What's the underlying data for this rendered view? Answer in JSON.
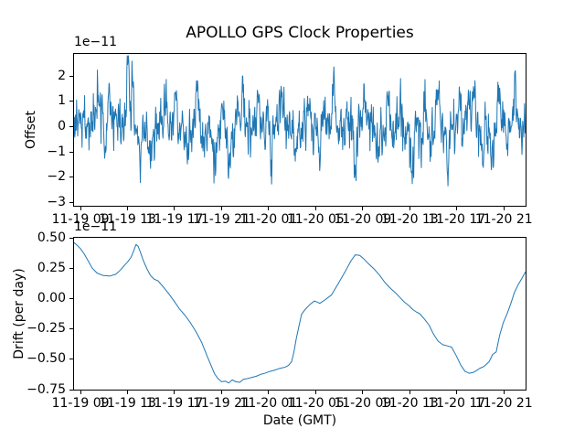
{
  "title": "APOLLO GPS Clock Properties",
  "colors": {
    "line": "#1f77b4",
    "background": "#ffffff",
    "text": "#000000"
  },
  "chart_data": [
    {
      "type": "line",
      "name": "offset-vs-time",
      "title": "APOLLO GPS Clock Properties",
      "ylabel": "Offset",
      "offset_text": "1e−11",
      "scale_factor": "1e-11",
      "ylim": [
        -3.13,
        2.87
      ],
      "yticks": [
        2,
        1,
        0,
        -1,
        -2,
        -3
      ],
      "ytick_labels": [
        "2",
        "1",
        "0",
        "−1",
        "−2",
        "−3"
      ],
      "x_domain_hours": [
        -0.55,
        37.85
      ],
      "xtick_hours": [
        0,
        4,
        8,
        12,
        16,
        20,
        24,
        28,
        32,
        36
      ],
      "xtick_labels": [
        "11-19 09",
        "11-19 13",
        "11-19 17",
        "11-19 21",
        "11-20 01",
        "11-20 05",
        "11-20 09",
        "11-20 13",
        "11-20 17",
        "11-20 21"
      ],
      "grid": false,
      "legend": false,
      "series": {
        "kind": "generated-noise",
        "description": "dense white-noise clock offset around 0 (units 1e-11 s)",
        "seed": 1119,
        "n": 1240,
        "noise_std": 0.55,
        "smooth": [
          0.8,
          0.45
        ],
        "wander": [
          [
            0.15,
            19.0,
            1.2
          ],
          [
            0.12,
            7.3,
            0.5
          ]
        ],
        "clip": [
          -3.05,
          2.8
        ],
        "spike_halfwidth_hours": 0.25,
        "spikes": [
          [
            1.55,
            1.1
          ],
          [
            2.1,
            -1.2
          ],
          [
            2.5,
            1.3
          ],
          [
            4.05,
            2.45
          ],
          [
            4.4,
            1.5
          ],
          [
            5.1,
            -1.5
          ],
          [
            5.9,
            -1.3
          ],
          [
            7.3,
            1.4
          ],
          [
            8.1,
            1.6
          ],
          [
            9.1,
            -1.5
          ],
          [
            9.9,
            1.5
          ],
          [
            11.35,
            -1.9
          ],
          [
            12.05,
            1.3
          ],
          [
            12.65,
            -1.6
          ],
          [
            13.35,
            1.2
          ],
          [
            13.8,
            1.75
          ],
          [
            15.1,
            1.4
          ],
          [
            16.2,
            -1.3
          ],
          [
            17.05,
            1.5
          ],
          [
            18.3,
            -1.2
          ],
          [
            19.4,
            1.2
          ],
          [
            20.3,
            -1.3
          ],
          [
            21.55,
            1.6
          ],
          [
            22.3,
            -1.1
          ],
          [
            23.38,
            -2.75
          ],
          [
            24.2,
            1.4
          ],
          [
            25.3,
            -1.2
          ],
          [
            26.2,
            1.4
          ],
          [
            27.2,
            1.2
          ],
          [
            28.2,
            -2.25
          ],
          [
            29.3,
            1.3
          ],
          [
            30.4,
            1.5
          ],
          [
            31.3,
            -1.4
          ],
          [
            32.2,
            1.3
          ],
          [
            33.0,
            1.85
          ],
          [
            33.45,
            1.6
          ],
          [
            34.2,
            -1.35
          ],
          [
            34.95,
            -1.45
          ],
          [
            35.6,
            1.5
          ],
          [
            36.3,
            -1.2
          ],
          [
            37.0,
            1.2
          ],
          [
            37.5,
            -0.9
          ]
        ]
      }
    },
    {
      "type": "line",
      "name": "drift-vs-time",
      "ylabel": "Drift (per day)",
      "xlabel": "Date (GMT)",
      "offset_text": "1e−11",
      "scale_factor": "1e-11",
      "ylim": [
        -0.75,
        0.5
      ],
      "yticks": [
        0.5,
        0.25,
        0,
        -0.25,
        -0.5,
        -0.75
      ],
      "ytick_labels": [
        "0.50",
        "0.25",
        "0.00",
        "−0.25",
        "−0.50",
        "−0.75"
      ],
      "x_domain_hours": [
        -0.55,
        37.85
      ],
      "xtick_hours": [
        0,
        4,
        8,
        12,
        16,
        20,
        24,
        28,
        32,
        36
      ],
      "xtick_labels": [
        "11-19 09",
        "11-19 13",
        "11-19 17",
        "11-19 21",
        "11-20 01",
        "11-20 05",
        "11-20 09",
        "11-20 13",
        "11-20 17",
        "11-20 21"
      ],
      "grid": false,
      "legend": false,
      "series": {
        "kind": "points",
        "description": "smooth clock drift curve (units 1e-11 per day); hours measured from 11-19 09:00 GMT",
        "x_hours": [
          -0.55,
          -0.3,
          0,
          0.3,
          0.65,
          1.0,
          1.4,
          1.9,
          2.5,
          3.0,
          3.4,
          3.7,
          4.0,
          4.3,
          4.55,
          4.72,
          4.9,
          5.1,
          5.35,
          5.65,
          5.95,
          6.25,
          6.6,
          7.0,
          7.5,
          7.95,
          8.45,
          8.9,
          9.35,
          9.8,
          10.3,
          10.75,
          11.1,
          11.4,
          11.7,
          12.0,
          12.3,
          12.6,
          12.9,
          13.2,
          13.55,
          13.85,
          14.15,
          14.55,
          14.95,
          15.3,
          15.7,
          16.1,
          16.5,
          16.85,
          17.1,
          17.4,
          17.7,
          17.95,
          18.15,
          18.35,
          18.55,
          18.8,
          19.1,
          19.5,
          19.9,
          20.35,
          20.8,
          21.35,
          21.9,
          22.5,
          23.0,
          23.37,
          23.75,
          24.05,
          24.5,
          25.0,
          25.45,
          25.9,
          26.4,
          26.8,
          27.15,
          27.55,
          27.95,
          28.25,
          28.55,
          28.85,
          29.25,
          29.65,
          30.0,
          30.4,
          30.8,
          31.2,
          31.55,
          31.95,
          32.35,
          32.7,
          33.05,
          33.35,
          33.65,
          33.95,
          34.3,
          34.75,
          35.05,
          35.35,
          35.65,
          35.95,
          36.3,
          36.6,
          36.9,
          37.2,
          37.5,
          37.85
        ],
        "y": [
          0.46,
          0.44,
          0.41,
          0.37,
          0.31,
          0.25,
          0.21,
          0.19,
          0.185,
          0.2,
          0.235,
          0.27,
          0.3,
          0.34,
          0.4,
          0.445,
          0.43,
          0.38,
          0.31,
          0.245,
          0.19,
          0.16,
          0.145,
          0.1,
          0.04,
          -0.02,
          -0.09,
          -0.14,
          -0.2,
          -0.27,
          -0.36,
          -0.47,
          -0.55,
          -0.62,
          -0.66,
          -0.685,
          -0.68,
          -0.695,
          -0.67,
          -0.685,
          -0.69,
          -0.665,
          -0.66,
          -0.65,
          -0.64,
          -0.625,
          -0.615,
          -0.6,
          -0.59,
          -0.578,
          -0.572,
          -0.565,
          -0.55,
          -0.52,
          -0.44,
          -0.33,
          -0.24,
          -0.13,
          -0.09,
          -0.05,
          -0.02,
          -0.04,
          -0.01,
          0.03,
          0.12,
          0.22,
          0.31,
          0.36,
          0.355,
          0.33,
          0.285,
          0.24,
          0.19,
          0.13,
          0.08,
          0.045,
          0.01,
          -0.03,
          -0.06,
          -0.09,
          -0.11,
          -0.125,
          -0.17,
          -0.22,
          -0.29,
          -0.35,
          -0.38,
          -0.39,
          -0.4,
          -0.47,
          -0.55,
          -0.6,
          -0.615,
          -0.61,
          -0.595,
          -0.575,
          -0.56,
          -0.52,
          -0.46,
          -0.44,
          -0.3,
          -0.2,
          -0.12,
          -0.04,
          0.05,
          0.11,
          0.16,
          0.22
        ]
      }
    }
  ]
}
